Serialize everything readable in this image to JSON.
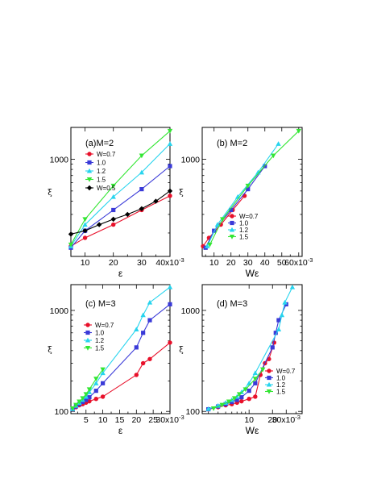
{
  "chart_data": [
    {
      "type": "line",
      "title": "(a)M=2",
      "xlabel": "ε",
      "ylabel": "ξ",
      "xscale": "linear",
      "yscale": "log",
      "xlim": [
        5,
        40
      ],
      "ylim": [
        120,
        2000
      ],
      "xticks": [
        10,
        20,
        30,
        40
      ],
      "xtick_labels": [
        "10",
        "20",
        "30",
        "40x10"
      ],
      "x_exponent": "-3",
      "yticks": [
        1000
      ],
      "ytick_labels": [
        "1000"
      ],
      "grid": false,
      "legend_position": "top-left",
      "series": [
        {
          "name": "W=0.7",
          "color": "#e8102a",
          "marker": "circle",
          "x": [
            5,
            10,
            20,
            30,
            40
          ],
          "y": [
            150,
            180,
            240,
            330,
            450
          ]
        },
        {
          "name": "1.0",
          "color": "#3a3ad8",
          "marker": "square",
          "x": [
            5,
            10,
            20,
            30,
            40
          ],
          "y": [
            145,
            210,
            330,
            520,
            860
          ]
        },
        {
          "name": "1.2",
          "color": "#27d4ee",
          "marker": "triangle-up",
          "x": [
            5,
            10,
            20,
            30,
            40
          ],
          "y": [
            150,
            240,
            440,
            750,
            1400
          ]
        },
        {
          "name": "1.5",
          "color": "#33e633",
          "marker": "triangle-down",
          "x": [
            5,
            10,
            20,
            30,
            40
          ],
          "y": [
            155,
            270,
            560,
            1080,
            1850
          ]
        },
        {
          "name": "W=0.5",
          "color": "#000000",
          "marker": "diamond",
          "x": [
            5,
            10,
            15,
            20,
            25,
            30,
            35,
            40
          ],
          "y": [
            195,
            210,
            240,
            270,
            300,
            340,
            400,
            500
          ]
        }
      ]
    },
    {
      "type": "line",
      "title": "(b) M=2",
      "xlabel": "Wε",
      "ylabel": "ξ",
      "xscale": "linear",
      "yscale": "log",
      "xlim": [
        3,
        62
      ],
      "ylim": [
        120,
        2000
      ],
      "xticks": [
        10,
        20,
        30,
        40,
        50,
        60
      ],
      "xtick_labels": [
        "10",
        "20",
        "30",
        "40",
        "50",
        "60x10"
      ],
      "x_exponent": "-3",
      "yticks": [
        1000
      ],
      "ytick_labels": [
        "1000"
      ],
      "grid": false,
      "legend_position": "bottom-right",
      "series": [
        {
          "name": "W=0.7",
          "color": "#e8102a",
          "marker": "circle",
          "x": [
            3.5,
            7,
            14,
            21,
            28
          ],
          "y": [
            150,
            180,
            240,
            330,
            450
          ]
        },
        {
          "name": "1.0",
          "color": "#3a3ad8",
          "marker": "square",
          "x": [
            5,
            10,
            20,
            30,
            40
          ],
          "y": [
            145,
            210,
            330,
            520,
            860
          ]
        },
        {
          "name": "1.2",
          "color": "#27d4ee",
          "marker": "triangle-up",
          "x": [
            6,
            12,
            24,
            36,
            48
          ],
          "y": [
            150,
            240,
            440,
            750,
            1400
          ]
        },
        {
          "name": "1.5",
          "color": "#33e633",
          "marker": "triangle-down",
          "x": [
            7.5,
            15,
            30,
            45,
            60
          ],
          "y": [
            155,
            270,
            560,
            1080,
            1850
          ]
        }
      ]
    },
    {
      "type": "line",
      "title": "(c) M=3",
      "xlabel": "ε",
      "ylabel": "ξ",
      "xscale": "linear",
      "yscale": "log",
      "xlim": [
        0.5,
        30
      ],
      "ylim": [
        95,
        1800
      ],
      "xticks": [
        5,
        10,
        15,
        20,
        25,
        30
      ],
      "xtick_labels": [
        "5",
        "10",
        "15",
        "20",
        "25",
        "30x10"
      ],
      "x_exponent": "-3",
      "yticks": [
        100,
        1000
      ],
      "ytick_labels": [
        "100",
        "1000"
      ],
      "grid": false,
      "legend_position": "center-left",
      "series": [
        {
          "name": "W=0.7",
          "color": "#e8102a",
          "marker": "circle",
          "x": [
            1,
            2,
            3,
            4,
            5,
            6,
            8,
            10,
            20,
            22,
            24,
            30
          ],
          "y": [
            105,
            110,
            115,
            118,
            122,
            126,
            133,
            140,
            230,
            300,
            330,
            480
          ]
        },
        {
          "name": "1.0",
          "color": "#3a3ad8",
          "marker": "square",
          "x": [
            1,
            2,
            3,
            4,
            5,
            6,
            8,
            10,
            20,
            22,
            24,
            30
          ],
          "y": [
            105,
            112,
            118,
            124,
            130,
            138,
            160,
            190,
            430,
            600,
            800,
            1150
          ]
        },
        {
          "name": "1.2",
          "color": "#27d4ee",
          "marker": "triangle-up",
          "x": [
            1,
            2,
            3,
            4,
            5,
            6,
            8,
            10,
            20,
            22,
            24,
            30
          ],
          "y": [
            106,
            114,
            122,
            130,
            140,
            155,
            190,
            240,
            650,
            900,
            1200,
            1700
          ]
        },
        {
          "name": "1.5",
          "color": "#33e633",
          "marker": "triangle-down",
          "x": [
            1,
            2,
            3,
            4,
            5,
            6,
            8,
            10
          ],
          "y": [
            107,
            116,
            125,
            135,
            148,
            165,
            210,
            260
          ]
        }
      ]
    },
    {
      "type": "line",
      "title": "(d) M=3",
      "xlabel": "Wε",
      "ylabel": "ξ",
      "xscale": "log",
      "yscale": "log",
      "xlim": [
        2.5,
        48
      ],
      "ylim": [
        95,
        1800
      ],
      "xticks": [
        10,
        20,
        30
      ],
      "xtick_labels": [
        "10",
        "20",
        "30x10"
      ],
      "x_exponent": "-3",
      "yticks": [
        100,
        1000
      ],
      "ytick_labels": [
        "100",
        "1000"
      ],
      "grid": false,
      "legend_position": "bottom-right",
      "series": [
        {
          "name": "W=0.7",
          "color": "#e8102a",
          "marker": "circle",
          "x": [
            3,
            4,
            5,
            6,
            7,
            8,
            10,
            12,
            14,
            16,
            18,
            21
          ],
          "y": [
            105,
            110,
            115,
            118,
            122,
            126,
            133,
            140,
            230,
            300,
            330,
            480
          ]
        },
        {
          "name": "1.0",
          "color": "#3a3ad8",
          "marker": "square",
          "x": [
            3,
            4,
            5,
            6,
            7,
            8,
            10,
            12,
            20,
            22,
            24,
            30
          ],
          "y": [
            105,
            112,
            118,
            124,
            130,
            138,
            160,
            190,
            430,
            600,
            800,
            1150
          ]
        },
        {
          "name": "1.2",
          "color": "#27d4ee",
          "marker": "triangle-up",
          "x": [
            3,
            4,
            5,
            6,
            7,
            8,
            10,
            12,
            24,
            26.4,
            28.8,
            36
          ],
          "y": [
            106,
            114,
            122,
            130,
            140,
            155,
            190,
            240,
            650,
            900,
            1200,
            1700
          ]
        },
        {
          "name": "1.5",
          "color": "#33e633",
          "marker": "triangle-down",
          "x": [
            3.5,
            4.5,
            5.5,
            6.5,
            7.5,
            9,
            12,
            15
          ],
          "y": [
            107,
            116,
            125,
            135,
            148,
            165,
            210,
            260
          ]
        }
      ]
    }
  ]
}
